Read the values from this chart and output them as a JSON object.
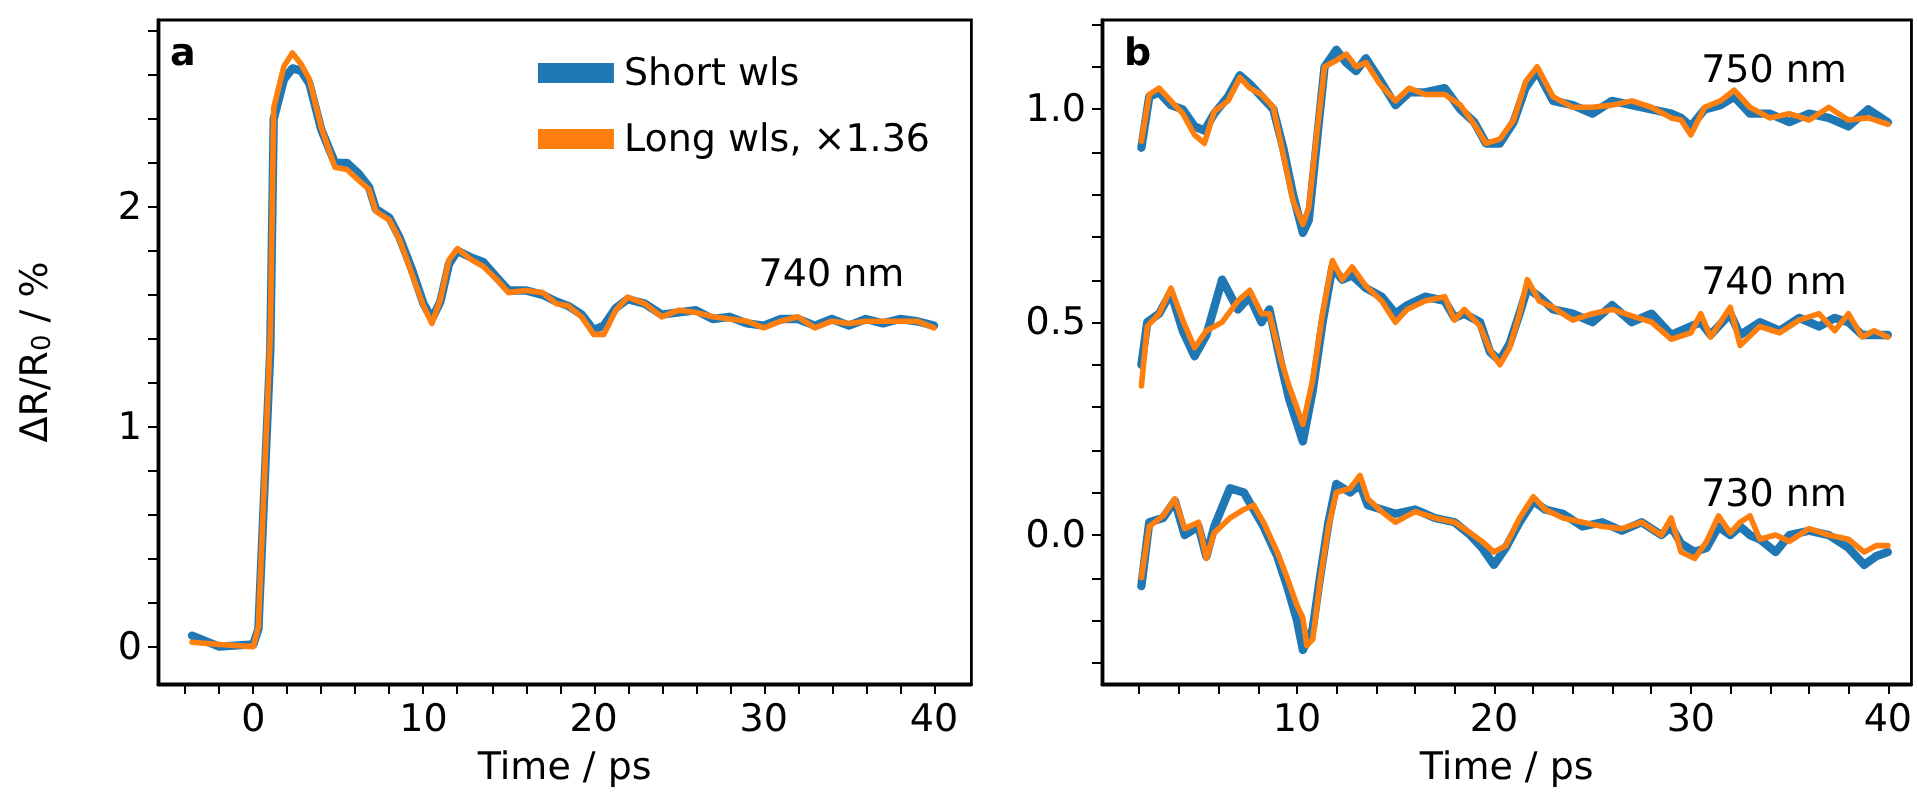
{
  "chart_data": [
    {
      "type": "line",
      "title": "a",
      "xlabel": "Time / ps",
      "ylabel": "ΔR/R$_{0}$ / %",
      "legend": "top right",
      "marker": "none",
      "grid": false,
      "xlim": [
        -5.6,
        42.2
      ],
      "ylim": [
        -0.17,
        2.85
      ],
      "xticks": [
        {
          "value": -4,
          "label": null
        },
        {
          "value": -2,
          "label": null
        },
        0,
        {
          "value": 2,
          "label": null
        },
        {
          "value": 4,
          "label": null
        },
        {
          "value": 6,
          "label": null
        },
        {
          "value": 8,
          "label": null
        },
        10,
        {
          "value": 12,
          "label": null
        },
        {
          "value": 14,
          "label": null
        },
        {
          "value": 16,
          "label": null
        },
        {
          "value": 18,
          "label": null
        },
        20,
        {
          "value": 22,
          "label": null
        },
        {
          "value": 24,
          "label": null
        },
        {
          "value": 26,
          "label": null
        },
        {
          "value": 28,
          "label": null
        },
        30,
        {
          "value": 32,
          "label": null
        },
        {
          "value": 34,
          "label": null
        },
        {
          "value": 36,
          "label": null
        },
        {
          "value": 38,
          "label": null
        },
        40
      ],
      "yticks": [
        0,
        {
          "value": 0.2,
          "label": null
        },
        {
          "value": 0.4,
          "label": null
        },
        {
          "value": 0.6,
          "label": null
        },
        {
          "value": 0.8,
          "label": null
        },
        1,
        {
          "value": 1.2,
          "label": null
        },
        {
          "value": 1.4,
          "label": null
        },
        {
          "value": 1.6,
          "label": null
        },
        {
          "value": 1.8,
          "label": null
        },
        2,
        {
          "value": 2.2,
          "label": null
        },
        {
          "value": 2.4,
          "label": null
        },
        {
          "value": 2.6,
          "label": null
        },
        {
          "value": 2.8,
          "label": null
        }
      ],
      "x": [
        -3.6,
        -2,
        0,
        0.3,
        1,
        1.2,
        1.8,
        2.3,
        2.8,
        3.3,
        4,
        4.8,
        5.5,
        6.2,
        6.8,
        7.2,
        8,
        8.6,
        9.3,
        10,
        10.5,
        11,
        11.5,
        12,
        12.8,
        13.5,
        14.3,
        15,
        16,
        17,
        17.8,
        18.5,
        19.3,
        20,
        20.6,
        21.3,
        22,
        23,
        24,
        25,
        26,
        27,
        28,
        29,
        30,
        31,
        32,
        33,
        34,
        35,
        36,
        37,
        38,
        39,
        40
      ],
      "series": [
        {
          "name": "Short wls",
          "color": "#1f77b4",
          "values": [
            0.05,
            0.0,
            0.01,
            0.08,
            1.35,
            2.4,
            2.58,
            2.63,
            2.62,
            2.56,
            2.35,
            2.2,
            2.2,
            2.15,
            2.09,
            1.99,
            1.95,
            1.86,
            1.72,
            1.56,
            1.49,
            1.57,
            1.74,
            1.8,
            1.77,
            1.75,
            1.68,
            1.62,
            1.62,
            1.6,
            1.57,
            1.55,
            1.51,
            1.44,
            1.46,
            1.54,
            1.58,
            1.56,
            1.51,
            1.52,
            1.53,
            1.49,
            1.5,
            1.47,
            1.46,
            1.49,
            1.49,
            1.46,
            1.49,
            1.46,
            1.49,
            1.47,
            1.49,
            1.48,
            1.46
          ]
        },
        {
          "name": "Long wls, ×1.36",
          "color": "#ff7f0e",
          "values": [
            0.02,
            0.01,
            0.0,
            0.09,
            1.42,
            2.45,
            2.64,
            2.7,
            2.65,
            2.58,
            2.36,
            2.18,
            2.17,
            2.12,
            2.08,
            1.98,
            1.94,
            1.85,
            1.7,
            1.55,
            1.47,
            1.58,
            1.76,
            1.81,
            1.76,
            1.73,
            1.67,
            1.61,
            1.62,
            1.61,
            1.56,
            1.55,
            1.5,
            1.42,
            1.42,
            1.53,
            1.59,
            1.56,
            1.5,
            1.53,
            1.52,
            1.5,
            1.49,
            1.48,
            1.45,
            1.48,
            1.5,
            1.45,
            1.48,
            1.47,
            1.48,
            1.48,
            1.48,
            1.48,
            1.45
          ]
        }
      ],
      "annotations": [
        "740 nm"
      ]
    },
    {
      "type": "line",
      "title": "b",
      "xlabel": "Time / ps",
      "marker": "none",
      "grid": false,
      "xlim": [
        0.1,
        41.2
      ],
      "ylim": [
        -0.35,
        1.21
      ],
      "xticks": [
        {
          "value": 2,
          "label": null
        },
        {
          "value": 4,
          "label": null
        },
        {
          "value": 6,
          "label": null
        },
        {
          "value": 8,
          "label": null
        },
        10,
        {
          "value": 12,
          "label": null
        },
        {
          "value": 14,
          "label": null
        },
        {
          "value": 16,
          "label": null
        },
        {
          "value": 18,
          "label": null
        },
        20,
        {
          "value": 22,
          "label": null
        },
        {
          "value": 24,
          "label": null
        },
        {
          "value": 26,
          "label": null
        },
        {
          "value": 28,
          "label": null
        },
        30,
        {
          "value": 32,
          "label": null
        },
        {
          "value": 34,
          "label": null
        },
        {
          "value": 36,
          "label": null
        },
        {
          "value": 38,
          "label": null
        },
        40
      ],
      "yticks": [
        {
          "value": -0.3,
          "label": null
        },
        {
          "value": -0.2,
          "label": null
        },
        {
          "value": -0.1,
          "label": null
        },
        {
          "value": 0,
          "label": "0.0"
        },
        {
          "value": 0.1,
          "label": null
        },
        {
          "value": 0.2,
          "label": null
        },
        {
          "value": 0.3,
          "label": null
        },
        {
          "value": 0.4,
          "label": null
        },
        {
          "value": 0.5,
          "label": "0.5"
        },
        {
          "value": 0.6,
          "label": null
        },
        {
          "value": 0.7,
          "label": null
        },
        {
          "value": 0.8,
          "label": null
        },
        {
          "value": 0.9,
          "label": null
        },
        {
          "value": 1,
          "label": "1.0"
        },
        {
          "value": 1.1,
          "label": null
        },
        {
          "value": 1.2,
          "label": null
        }
      ],
      "series": [
        {
          "color": "#1f77b4",
          "x": [
            2.1,
            2.5,
            3,
            3.6,
            4.2,
            4.8,
            5.3,
            5.8,
            6.5,
            7.1,
            7.6,
            8.2,
            8.8,
            9.3,
            9.8,
            10.3,
            10.6,
            11,
            11.4,
            12,
            12.5,
            13,
            13.5,
            14.2,
            15,
            15.7,
            16.5,
            17.5,
            18.3,
            19,
            19.6,
            20.3,
            21,
            21.6,
            22.2,
            23,
            24,
            25,
            26,
            27,
            28,
            29,
            29.5,
            30,
            30.7,
            31.5,
            32.2,
            33,
            34,
            35,
            36,
            37,
            38,
            39,
            40
          ],
          "values": [
            0.91,
            1.03,
            1.04,
            1.01,
            1.0,
            0.96,
            0.95,
            0.99,
            1.03,
            1.08,
            1.06,
            1.03,
            1.0,
            0.91,
            0.8,
            0.71,
            0.74,
            0.92,
            1.1,
            1.14,
            1.11,
            1.09,
            1.12,
            1.07,
            1.01,
            1.04,
            1.04,
            1.05,
            1.0,
            0.97,
            0.92,
            0.92,
            0.97,
            1.05,
            1.09,
            1.02,
            1.01,
            0.99,
            1.02,
            1.01,
            1.0,
            0.99,
            0.98,
            0.96,
            1.0,
            1.01,
            1.03,
            0.99,
            0.99,
            0.97,
            0.99,
            0.98,
            0.96,
            1.0,
            0.97
          ]
        },
        {
          "color": "#ff7f0e",
          "x": [
            2.1,
            2.5,
            3,
            3.6,
            4.2,
            4.8,
            5.3,
            5.8,
            6.5,
            7.1,
            7.6,
            8.2,
            8.8,
            9.3,
            9.8,
            10.3,
            10.6,
            11,
            11.4,
            12,
            12.5,
            13,
            13.5,
            14.2,
            15,
            15.7,
            16.5,
            17.5,
            18.3,
            19,
            19.6,
            20.3,
            21,
            21.6,
            22.2,
            23,
            24,
            25,
            26,
            27,
            28,
            29,
            29.5,
            30,
            30.7,
            31.5,
            32.2,
            33,
            34,
            35,
            36,
            37,
            38,
            39,
            40
          ],
          "values": [
            0.925,
            1.035,
            1.05,
            1.02,
            0.99,
            0.94,
            0.92,
            0.995,
            1.02,
            1.075,
            1.05,
            1.035,
            1.005,
            0.895,
            0.785,
            0.73,
            0.77,
            0.94,
            1.1,
            1.115,
            1.13,
            1.1,
            1.11,
            1.06,
            1.02,
            1.05,
            1.035,
            1.035,
            1.01,
            0.965,
            0.92,
            0.93,
            0.975,
            1.065,
            1.1,
            1.03,
            1.005,
            1.005,
            1.01,
            1.02,
            1.005,
            0.98,
            0.975,
            0.94,
            1.005,
            1.02,
            1.045,
            1.005,
            0.98,
            0.99,
            0.975,
            1.005,
            0.975,
            0.98,
            0.965
          ]
        },
        {
          "color": "#1f77b4",
          "x": [
            2.1,
            2.4,
            3,
            3.6,
            4.2,
            4.8,
            5.4,
            6.2,
            7,
            7.6,
            8.2,
            8.6,
            9.2,
            9.6,
            10.3,
            10.8,
            11.3,
            11.8,
            12.3,
            12.8,
            13.5,
            14.3,
            15,
            15.6,
            16.5,
            17.5,
            18,
            18.5,
            19.3,
            19.8,
            20.3,
            20.8,
            21.3,
            21.7,
            22.3,
            23,
            24,
            25,
            26,
            27,
            28,
            29,
            30,
            30.5,
            31,
            32,
            32.5,
            33.5,
            34.5,
            35.5,
            36.5,
            37.3,
            38,
            38.7,
            39.3,
            40
          ],
          "values": [
            0.4,
            0.5,
            0.52,
            0.57,
            0.48,
            0.42,
            0.47,
            0.6,
            0.53,
            0.56,
            0.5,
            0.53,
            0.4,
            0.32,
            0.22,
            0.34,
            0.5,
            0.63,
            0.6,
            0.61,
            0.58,
            0.56,
            0.52,
            0.54,
            0.56,
            0.55,
            0.51,
            0.52,
            0.5,
            0.43,
            0.41,
            0.45,
            0.52,
            0.58,
            0.56,
            0.53,
            0.52,
            0.5,
            0.54,
            0.5,
            0.52,
            0.47,
            0.49,
            0.5,
            0.47,
            0.52,
            0.47,
            0.5,
            0.48,
            0.51,
            0.49,
            0.51,
            0.5,
            0.47,
            0.47,
            0.47
          ]
        },
        {
          "color": "#ff7f0e",
          "x": [
            2.1,
            2.4,
            3,
            3.6,
            4.2,
            4.8,
            5.4,
            6.2,
            7,
            7.6,
            8.2,
            8.6,
            9.2,
            9.6,
            10.3,
            10.8,
            11.3,
            11.8,
            12.3,
            12.8,
            13.5,
            14.3,
            15,
            15.6,
            16.5,
            17.5,
            18,
            18.5,
            19.3,
            19.8,
            20.3,
            20.8,
            21.3,
            21.7,
            22.3,
            23,
            24,
            25,
            26,
            27,
            28,
            29,
            30,
            30.5,
            31,
            32,
            32.5,
            33.5,
            34.5,
            35.5,
            36.5,
            37.3,
            38,
            38.7,
            39.3,
            40
          ],
          "values": [
            0.35,
            0.49,
            0.52,
            0.58,
            0.505,
            0.44,
            0.48,
            0.5,
            0.55,
            0.575,
            0.52,
            0.52,
            0.41,
            0.35,
            0.26,
            0.365,
            0.52,
            0.645,
            0.6,
            0.63,
            0.585,
            0.55,
            0.5,
            0.53,
            0.55,
            0.56,
            0.505,
            0.53,
            0.49,
            0.435,
            0.4,
            0.44,
            0.52,
            0.6,
            0.55,
            0.535,
            0.505,
            0.52,
            0.53,
            0.515,
            0.5,
            0.46,
            0.475,
            0.52,
            0.465,
            0.535,
            0.445,
            0.49,
            0.475,
            0.505,
            0.52,
            0.48,
            0.52,
            0.465,
            0.48,
            0.465
          ]
        },
        {
          "color": "#1f77b4",
          "x": [
            2.1,
            2.5,
            3.2,
            3.8,
            4.3,
            5,
            5.4,
            5.8,
            6.6,
            7.3,
            7.8,
            8.3,
            9,
            9.5,
            10,
            10.3,
            10.5,
            10.8,
            11.2,
            11.6,
            12,
            12.7,
            13.2,
            13.6,
            14.3,
            15,
            16,
            17,
            18,
            18.8,
            19.4,
            20,
            20.6,
            21.3,
            22,
            22.6,
            23.5,
            24.5,
            25.5,
            26.5,
            27.5,
            28.5,
            29,
            29.5,
            30.2,
            30.8,
            31.4,
            32,
            32.5,
            33,
            33.5,
            34.3,
            35,
            36,
            37,
            38,
            38.8,
            39.4,
            40
          ],
          "values": [
            -0.12,
            0.03,
            0.04,
            0.08,
            0.0,
            0.02,
            -0.05,
            0.02,
            0.11,
            0.1,
            0.06,
            0.02,
            -0.05,
            -0.12,
            -0.2,
            -0.27,
            -0.25,
            -0.22,
            -0.09,
            0.03,
            0.12,
            0.1,
            0.12,
            0.07,
            0.06,
            0.05,
            0.06,
            0.04,
            0.03,
            0.0,
            -0.03,
            -0.07,
            -0.03,
            0.03,
            0.08,
            0.06,
            0.05,
            0.02,
            0.03,
            0.01,
            0.03,
            0.0,
            0.02,
            -0.02,
            -0.04,
            -0.03,
            0.02,
            0.0,
            0.02,
            0.0,
            -0.01,
            -0.04,
            0.0,
            0.01,
            0.0,
            -0.03,
            -0.07,
            -0.05,
            -0.04
          ]
        },
        {
          "color": "#ff7f0e",
          "x": [
            2.1,
            2.5,
            3.2,
            3.8,
            4.3,
            5,
            5.4,
            5.8,
            6.6,
            7.3,
            7.8,
            8.3,
            9,
            9.5,
            10,
            10.3,
            10.5,
            10.8,
            11.2,
            11.6,
            12,
            12.7,
            13.2,
            13.6,
            14.3,
            15,
            16,
            17,
            18,
            18.8,
            19.4,
            20,
            20.6,
            21.3,
            22,
            22.6,
            23.5,
            24.5,
            25.5,
            26.5,
            27.5,
            28.5,
            29,
            29.5,
            30.2,
            30.8,
            31.4,
            32,
            32.5,
            33,
            33.5,
            34.3,
            35,
            36,
            37,
            38,
            38.8,
            39.4,
            40
          ],
          "values": [
            -0.1,
            0.02,
            0.045,
            0.085,
            0.015,
            0.03,
            -0.055,
            0.005,
            0.04,
            0.06,
            0.07,
            0.03,
            -0.04,
            -0.1,
            -0.165,
            -0.195,
            -0.26,
            -0.245,
            -0.1,
            0.02,
            0.1,
            0.11,
            0.14,
            0.085,
            0.055,
            0.03,
            0.055,
            0.04,
            0.03,
            0.005,
            -0.015,
            -0.04,
            -0.025,
            0.04,
            0.09,
            0.06,
            0.04,
            0.03,
            0.02,
            0.015,
            0.03,
            0.0,
            0.04,
            -0.04,
            -0.055,
            -0.015,
            0.045,
            0.005,
            0.03,
            0.045,
            -0.01,
            0.0,
            -0.015,
            0.015,
            0.0,
            -0.01,
            -0.04,
            -0.025,
            -0.025
          ]
        }
      ],
      "annotations": [
        "750 nm",
        "740 nm",
        "730 nm"
      ]
    }
  ]
}
